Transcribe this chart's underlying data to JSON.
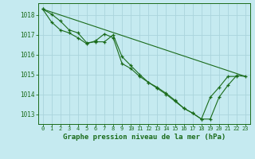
{
  "title": "Graphe pression niveau de la mer (hPa)",
  "background_color": "#c5eaf0",
  "grid_color": "#aad4dc",
  "line_color": "#1a6b1a",
  "xlim": [
    -0.5,
    23.5
  ],
  "ylim": [
    1012.5,
    1018.6
  ],
  "yticks": [
    1013,
    1014,
    1015,
    1016,
    1017,
    1018
  ],
  "xtick_labels": [
    "0",
    "1",
    "2",
    "3",
    "4",
    "5",
    "6",
    "7",
    "8",
    "9",
    "10",
    "11",
    "12",
    "13",
    "14",
    "15",
    "16",
    "17",
    "18",
    "19",
    "20",
    "21",
    "22",
    "23"
  ],
  "series": [
    {
      "x": [
        0,
        1,
        2,
        3,
        4,
        5,
        6,
        7,
        8,
        9,
        10,
        11,
        12,
        13,
        14,
        15,
        16,
        17,
        18,
        19,
        20,
        21,
        22,
        23
      ],
      "y": [
        1018.3,
        1018.05,
        1017.7,
        1017.25,
        1017.1,
        1016.6,
        1016.65,
        1016.65,
        1017.0,
        1015.9,
        1015.45,
        1015.0,
        1014.6,
        1014.35,
        1014.05,
        1013.7,
        1013.3,
        1013.05,
        1012.75,
        1012.75,
        1013.85,
        1014.45,
        1014.95,
        1014.9
      ]
    },
    {
      "x": [
        0,
        1,
        2,
        3,
        4,
        5,
        6,
        7,
        8,
        9,
        10,
        11,
        12,
        13,
        14,
        15,
        16,
        17,
        18,
        19,
        20,
        21,
        22
      ],
      "y": [
        1018.3,
        1017.65,
        1017.25,
        1017.1,
        1016.85,
        1016.55,
        1016.7,
        1017.05,
        1016.85,
        1015.55,
        1015.3,
        1014.9,
        1014.6,
        1014.3,
        1014.0,
        1013.65,
        1013.3,
        1013.05,
        1012.75,
        1013.85,
        1014.35,
        1014.9,
        1014.9
      ]
    },
    {
      "x": [
        0,
        23
      ],
      "y": [
        1018.3,
        1014.9
      ]
    }
  ]
}
